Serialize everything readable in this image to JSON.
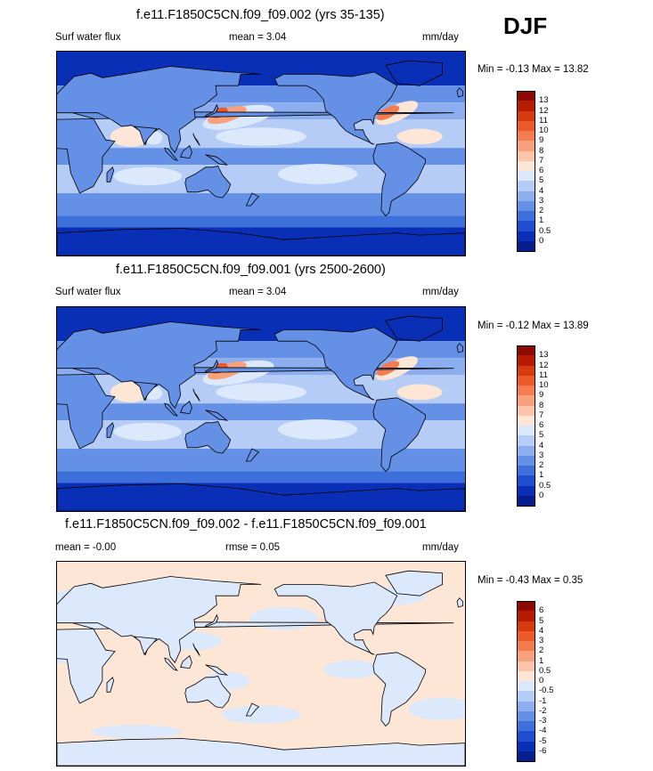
{
  "season": "DJF",
  "panels": [
    {
      "title": "f.e11.F1850C5CN.f09_f09.002 (yrs 35-135)",
      "left_label": "Surf water flux",
      "mid_label": "mean =   3.04",
      "units": "mm/day",
      "minmax": "Min =  -0.13 Max =  13.82",
      "field": "mean",
      "colorbar": {
        "labels": [
          "13",
          "12",
          "11",
          "10",
          "9",
          "8",
          "7",
          "6",
          "5",
          "4",
          "3",
          "2",
          "1",
          "0.5",
          "0"
        ],
        "colors": [
          "#8c0a00",
          "#b81c00",
          "#d83a10",
          "#ec5a2a",
          "#f47c4e",
          "#f9a07c",
          "#fcc4a8",
          "#fde6d6",
          "#dce8fb",
          "#b5cdf6",
          "#8caeee",
          "#6490e6",
          "#3e70dc",
          "#1f4fcf",
          "#0a2fb7",
          "#061d8c"
        ]
      }
    },
    {
      "title": "f.e11.F1850C5CN.f09_f09.001 (yrs 2500-2600)",
      "left_label": "Surf water flux",
      "mid_label": "mean =   3.04",
      "units": "mm/day",
      "minmax": "Min =  -0.12 Max =  13.89",
      "field": "mean",
      "colorbar": {
        "labels": [
          "13",
          "12",
          "11",
          "10",
          "9",
          "8",
          "7",
          "6",
          "5",
          "4",
          "3",
          "2",
          "1",
          "0.5",
          "0"
        ],
        "colors": [
          "#8c0a00",
          "#b81c00",
          "#d83a10",
          "#ec5a2a",
          "#f47c4e",
          "#f9a07c",
          "#fcc4a8",
          "#fde6d6",
          "#dce8fb",
          "#b5cdf6",
          "#8caeee",
          "#6490e6",
          "#3e70dc",
          "#1f4fcf",
          "#0a2fb7",
          "#061d8c"
        ]
      }
    },
    {
      "title": "f.e11.F1850C5CN.f09_f09.002 - f.e11.F1850C5CN.f09_f09.001",
      "left_label": "mean =  -0.00",
      "mid_label": "rmse =    0.05",
      "units": "mm/day",
      "minmax": "Min =  -0.43 Max =   0.35",
      "field": "diff",
      "colorbar": {
        "labels": [
          "6",
          "5",
          "4",
          "3",
          "2",
          "1",
          "0.5",
          "0",
          "-0.5",
          "-1",
          "-2",
          "-3",
          "-4",
          "-5",
          "-6"
        ],
        "colors": [
          "#8c0a00",
          "#b81c00",
          "#d83a10",
          "#ec5a2a",
          "#f47c4e",
          "#f9a07c",
          "#fcc4a8",
          "#fde6d6",
          "#dce8fb",
          "#b5cdf6",
          "#8caeee",
          "#6490e6",
          "#3e70dc",
          "#1f4fcf",
          "#0a2fb7",
          "#061d8c"
        ]
      }
    }
  ],
  "chart_data": [
    {
      "type": "heatmap",
      "title": "f.e11.F1850C5CN.f09_f09.002 (yrs 35-135)",
      "variable": "Surf water flux",
      "units": "mm/day",
      "mean": 3.04,
      "min": -0.13,
      "max": 13.82,
      "contour_levels": [
        0,
        0.5,
        1,
        2,
        3,
        4,
        5,
        6,
        7,
        8,
        9,
        10,
        11,
        12,
        13
      ],
      "legend": "right"
    },
    {
      "type": "heatmap",
      "title": "f.e11.F1850C5CN.f09_f09.001 (yrs 2500-2600)",
      "variable": "Surf water flux",
      "units": "mm/day",
      "mean": 3.04,
      "min": -0.12,
      "max": 13.89,
      "contour_levels": [
        0,
        0.5,
        1,
        2,
        3,
        4,
        5,
        6,
        7,
        8,
        9,
        10,
        11,
        12,
        13
      ],
      "legend": "right"
    },
    {
      "type": "heatmap",
      "title": "f.e11.F1850C5CN.f09_f09.002 - f.e11.F1850C5CN.f09_f09.001",
      "units": "mm/day",
      "mean": -0.0,
      "rmse": 0.05,
      "min": -0.43,
      "max": 0.35,
      "contour_levels": [
        -6,
        -5,
        -4,
        -3,
        -2,
        -1,
        -0.5,
        0,
        0.5,
        1,
        2,
        3,
        4,
        5,
        6
      ],
      "legend": "right"
    }
  ]
}
